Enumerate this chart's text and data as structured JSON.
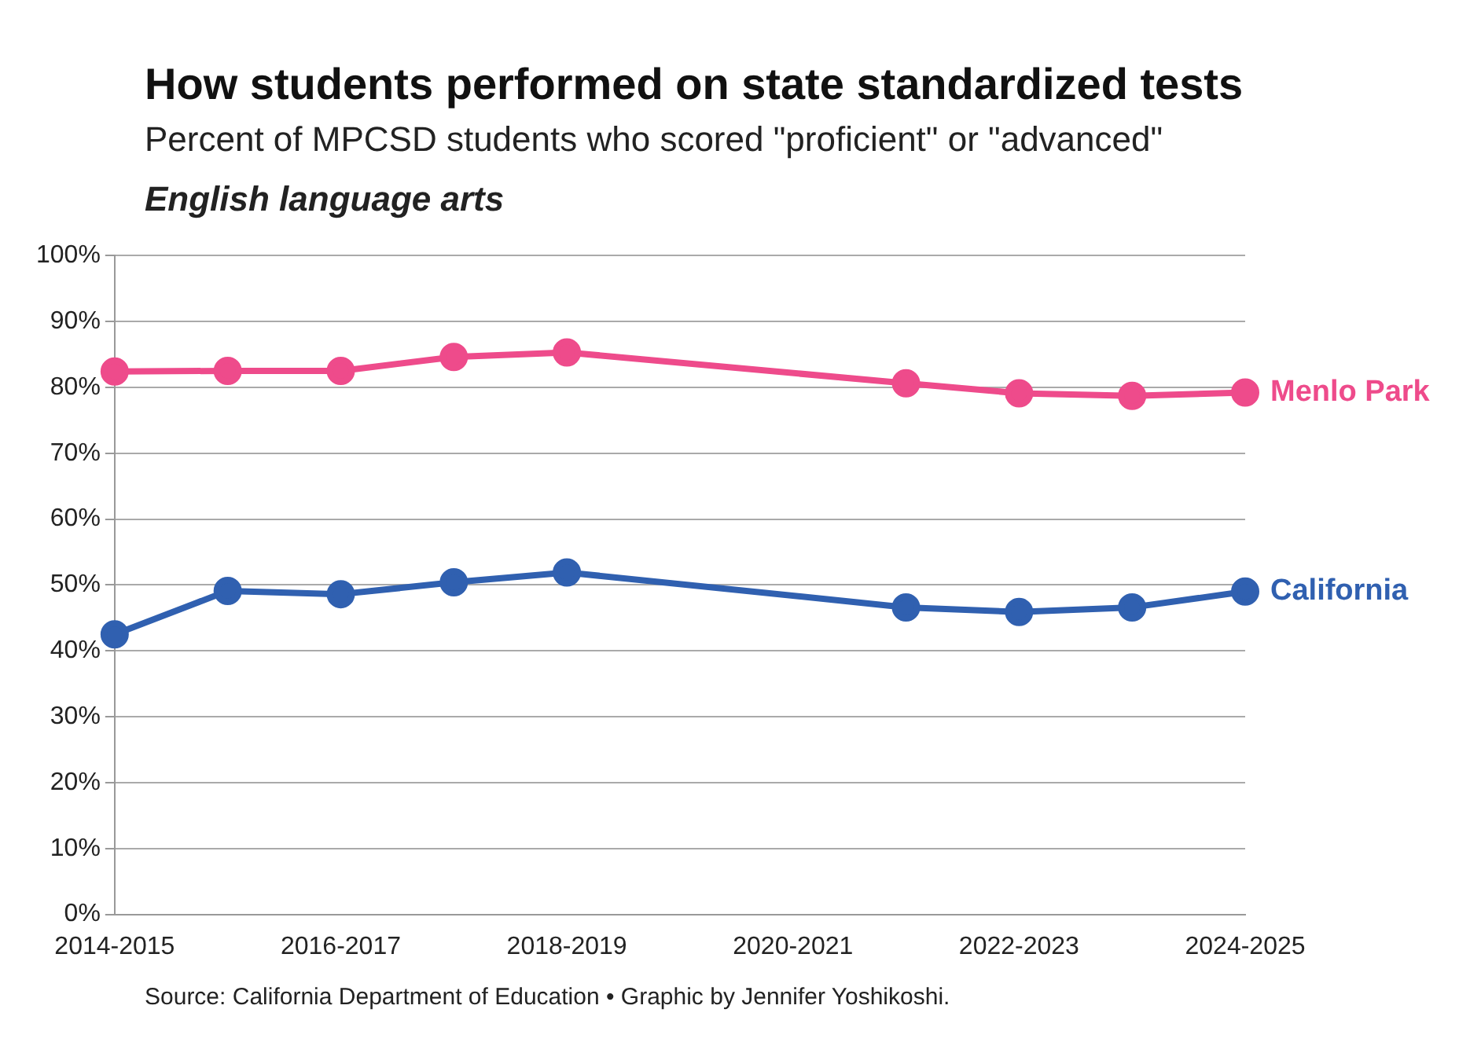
{
  "chart_data": {
    "type": "line",
    "title": "How students performed on state standardized tests",
    "subtitle": "Percent of MPCSD students who scored \"proficient\" or \"advanced\"",
    "ylabel": "English language arts",
    "categories": [
      "2014-2015",
      null,
      "2016-2017",
      null,
      "2018-2019",
      null,
      "2020-2021",
      null,
      "2022-2023",
      null,
      "2024-2025"
    ],
    "series": [
      {
        "name": "Menlo Park",
        "color": "#ee4b8b",
        "values": [
          82.4,
          82.5,
          82.5,
          84.6,
          85.3,
          null,
          null,
          80.6,
          79.1,
          78.7,
          79.2
        ]
      },
      {
        "name": "California",
        "color": "#3060b0",
        "values": [
          42.5,
          49.1,
          48.6,
          50.4,
          51.9,
          null,
          null,
          46.6,
          45.9,
          46.6,
          49.0
        ]
      }
    ],
    "ylim": [
      0,
      100
    ],
    "yticks": [
      {
        "value": 0,
        "label": "0%"
      },
      {
        "value": 10,
        "label": "10%"
      },
      {
        "value": 20,
        "label": "20%"
      },
      {
        "value": 30,
        "label": "30%"
      },
      {
        "value": 40,
        "label": "40%"
      },
      {
        "value": 50,
        "label": "50%"
      },
      {
        "value": 60,
        "label": "60%"
      },
      {
        "value": 70,
        "label": "70%"
      },
      {
        "value": 80,
        "label": "80%"
      },
      {
        "value": 90,
        "label": "90%"
      },
      {
        "value": 100,
        "label": "100%"
      }
    ],
    "grid": "y",
    "legend": false,
    "marker": "circle",
    "line_style": "solid",
    "annotations": [
      "Source: California Department of Education • Graphic by Jennifer Yoshikoshi."
    ]
  }
}
